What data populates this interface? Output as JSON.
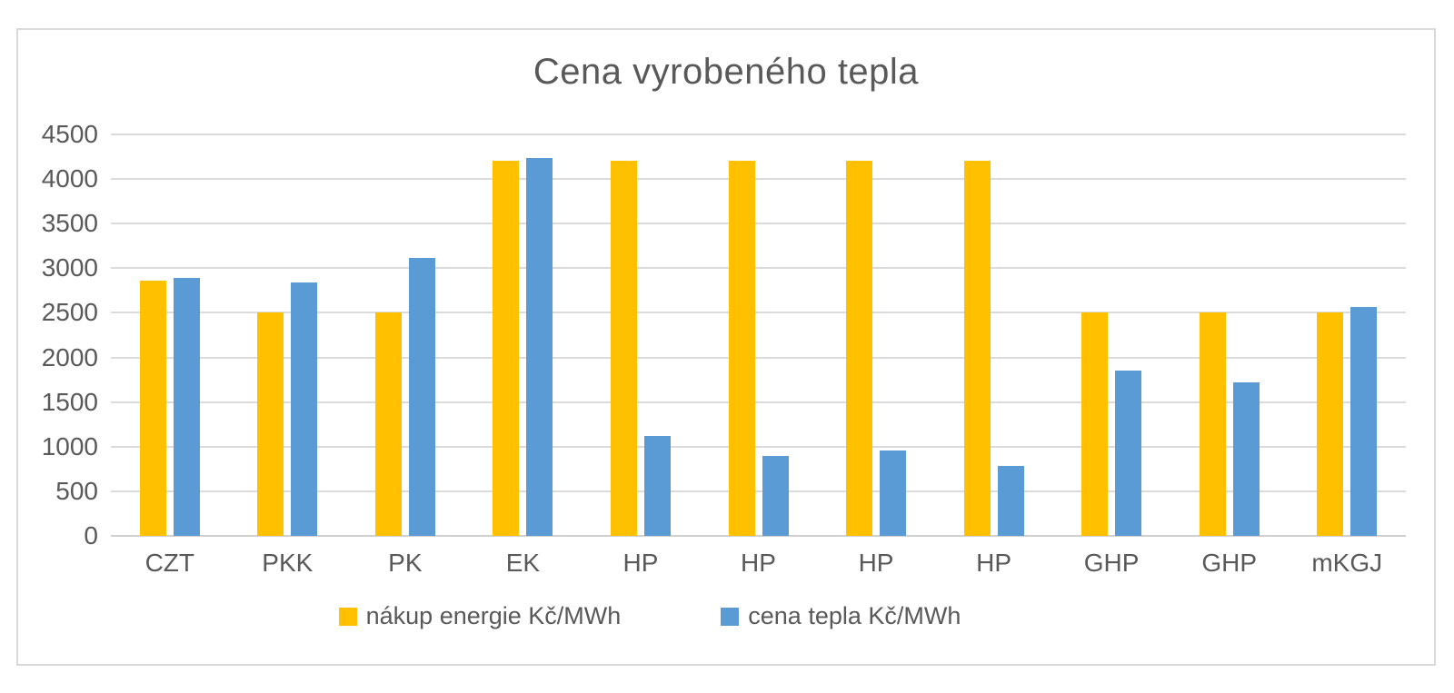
{
  "chart_data": {
    "type": "bar",
    "title": "Cena vyrobeného tepla",
    "categories": [
      "CZT",
      "PKK",
      "PK",
      "EK",
      "HP",
      "HP",
      "HP",
      "HP",
      "GHP",
      "GHP",
      "mKGJ"
    ],
    "series": [
      {
        "name": "nákup energie Kč/MWh",
        "color": "#FFC000",
        "values": [
          2860,
          2500,
          2500,
          4200,
          4200,
          4200,
          4200,
          4200,
          2500,
          2500,
          2500
        ]
      },
      {
        "name": "cena tepla Kč/MWh",
        "color": "#5B9BD5",
        "values": [
          2890,
          2840,
          3120,
          4240,
          1120,
          900,
          960,
          780,
          1850,
          1720,
          2570
        ]
      }
    ],
    "xlabel": "",
    "ylabel": "",
    "ylim": [
      0,
      4500
    ],
    "yticks": [
      0,
      500,
      1000,
      1500,
      2000,
      2500,
      3000,
      3500,
      4000,
      4500
    ],
    "grid": "horizontal",
    "legend_position": "bottom",
    "colors": {
      "text": "#595959",
      "gridline": "#DBDBDB",
      "frame_border": "#D9D9D9",
      "background": "#FFFFFF"
    }
  }
}
